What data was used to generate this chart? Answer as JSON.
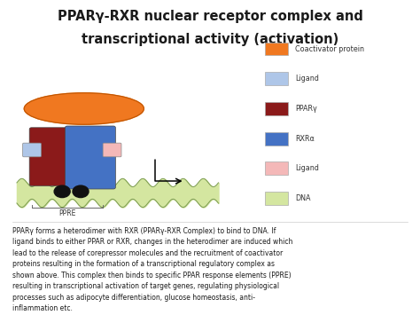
{
  "title_line1": "PPARγ-RXR nuclear receptor complex and",
  "title_line2": "transcriptional activity (activation)",
  "background_color": "#ffffff",
  "legend_items": [
    {
      "label": "Coactivator protein",
      "color": "#f07820"
    },
    {
      "label": "Ligand",
      "color": "#aec6e8"
    },
    {
      "label": "PPARγ",
      "color": "#8b1a1a"
    },
    {
      "label": "RXRα",
      "color": "#4472c4"
    },
    {
      "label": "Ligand",
      "color": "#f4b8b8"
    },
    {
      "label": "DNA",
      "color": "#d4e6a0"
    }
  ],
  "body_text": "PPARγ forms a heterodimer with RXR (PPARγ-RXR Complex) to bind to DNA. If\nligand binds to either PPAR or RXR, changes in the heterodimer are induced which\nlead to the release of corepressor molecules and the recruitment of coactivator\nproteins resulting in the formation of a transcriptional regulatory complex as\nshown above. This complex then binds to specific PPAR response elements (PPRE)\nresulting in transcriptional activation of target genes, regulating physiological\nprocesses such as adipocyte differentiation, glucose homeostasis, anti-\ninflammation etc.",
  "ppre_label": "PPRE"
}
